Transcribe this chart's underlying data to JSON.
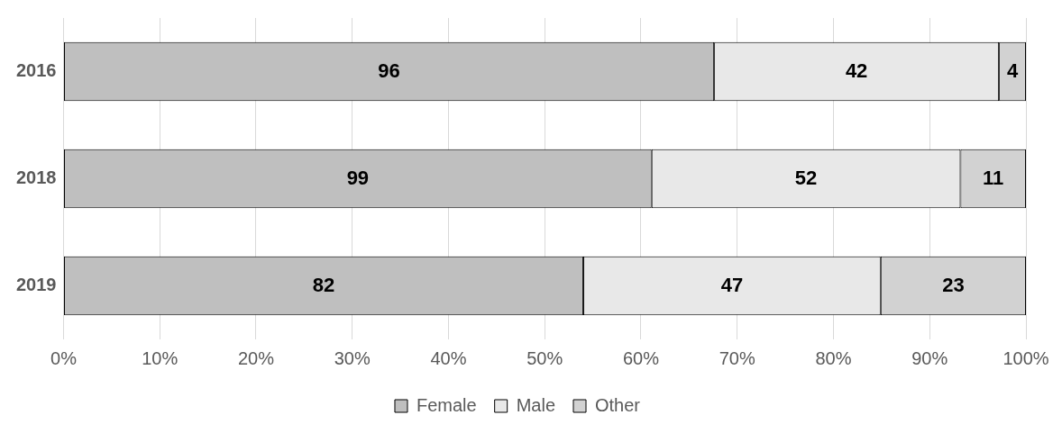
{
  "chart_data": {
    "type": "bar",
    "orientation": "horizontal",
    "stacked": true,
    "categories": [
      "2016",
      "2018",
      "2019"
    ],
    "series": [
      {
        "name": "Female",
        "color": "#bfbfbf",
        "values": [
          67.6,
          61.1,
          54.0
        ]
      },
      {
        "name": "Male",
        "color": "#e8e8e8",
        "values": [
          29.6,
          32.1,
          30.9
        ]
      },
      {
        "name": "Other",
        "color": "#d2d2d2",
        "values": [
          2.8,
          6.8,
          15.1
        ]
      }
    ],
    "xlim": [
      0,
      100
    ],
    "xticks": [
      {
        "value": 0,
        "label": "0%"
      },
      {
        "value": 10,
        "label": "10%"
      },
      {
        "value": 20,
        "label": "20%"
      },
      {
        "value": 30,
        "label": "30%"
      },
      {
        "value": 40,
        "label": "40%"
      },
      {
        "value": 50,
        "label": "50%"
      },
      {
        "value": 60,
        "label": "60%"
      },
      {
        "value": 70,
        "label": "70%"
      },
      {
        "value": 80,
        "label": "80%"
      },
      {
        "value": 90,
        "label": "90%"
      },
      {
        "value": 100,
        "label": "100%"
      }
    ],
    "annotations": [
      "96",
      "42",
      "4",
      "99",
      "52",
      "11",
      "82",
      "47",
      "23"
    ],
    "grid": "x",
    "legend": "bottom"
  }
}
